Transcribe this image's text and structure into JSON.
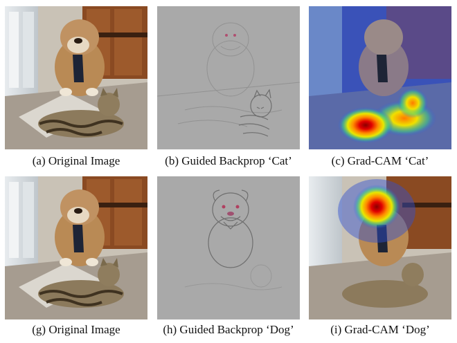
{
  "panels": [
    {
      "id": "a",
      "caption": "(a) Original Image",
      "kind": "photo"
    },
    {
      "id": "b",
      "caption": "(b) Guided Backprop ‘Cat’",
      "kind": "guided"
    },
    {
      "id": "c",
      "caption": "(c) Grad-CAM ‘Cat’",
      "kind": "gradcam-cat"
    },
    {
      "id": "g",
      "caption": "(g) Original Image",
      "kind": "photo"
    },
    {
      "id": "h",
      "caption": "(h) Guided Backprop ‘Dog’",
      "kind": "guided"
    },
    {
      "id": "i",
      "caption": "(i) Grad-CAM ‘Dog’",
      "kind": "gradcam-dog"
    }
  ],
  "colors": {
    "wall": "#c9c2b6",
    "floor": "#a69c90",
    "door": "#8a4a22",
    "dog_fur": "#b98a55",
    "cat_fur": "#8c7a5c",
    "guided_bg": "#a9a9a9",
    "heat_hot": "#d00000"
  }
}
